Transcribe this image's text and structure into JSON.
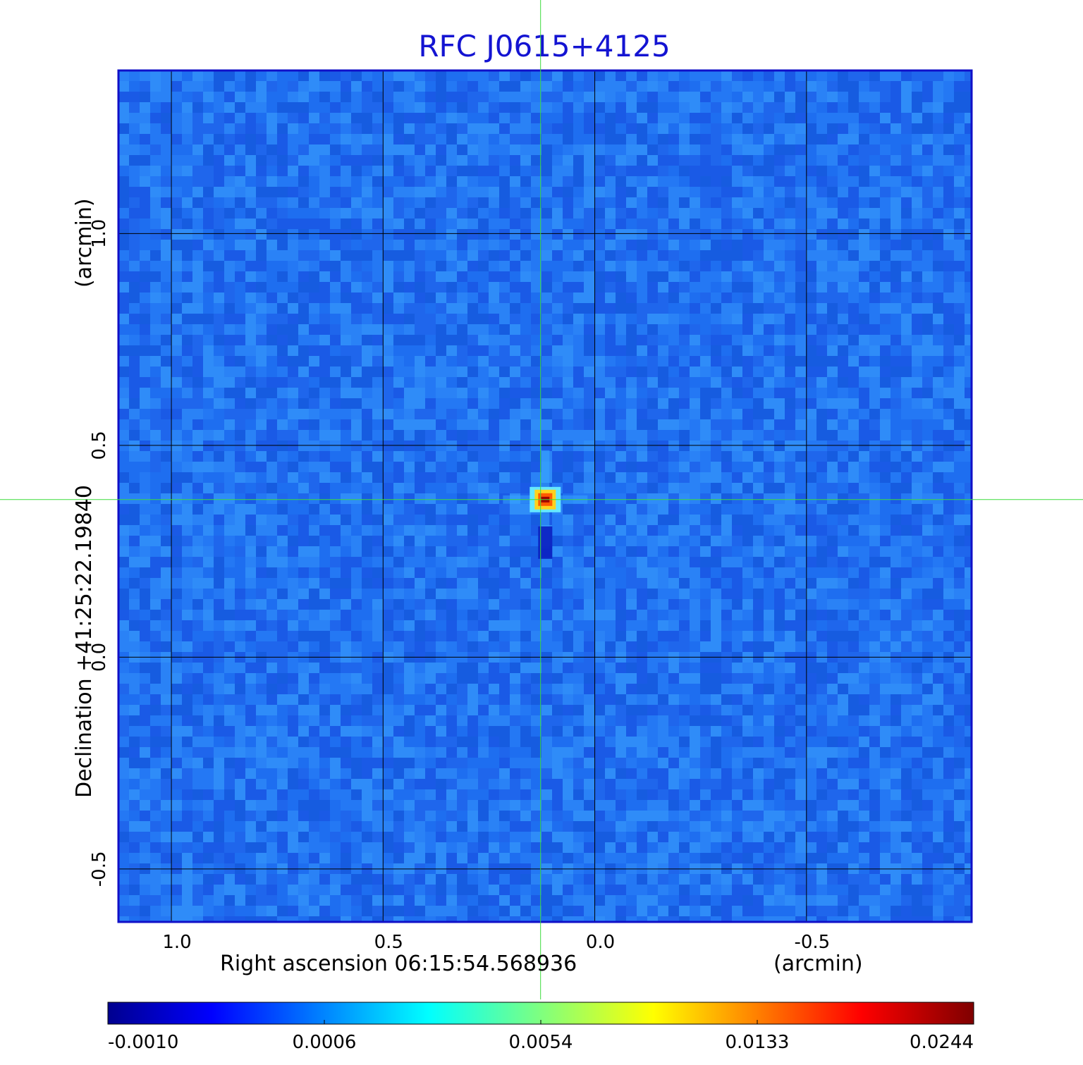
{
  "chart_data": {
    "type": "heatmap",
    "title": "RFC J0615+4125",
    "xlabel": "Right ascension  06:15:54.568936",
    "xunit": "(arcmin)",
    "ylabel": "Declination  +41:25:22.19840",
    "yunit": "(arcmin)",
    "xlim": [
      1.125,
      -0.89
    ],
    "ylim": [
      -0.625,
      1.385
    ],
    "x_ticks": [
      1.0,
      0.5,
      0.0,
      -0.5
    ],
    "x_tick_labels": [
      "1.0",
      "0.5",
      "0.0",
      "-0.5"
    ],
    "y_ticks": [
      -0.5,
      0.0,
      0.5,
      1.0
    ],
    "y_tick_labels": [
      "-0.5",
      "0.0",
      "0.5",
      "1.0"
    ],
    "grid": true,
    "crosshair": {
      "x": 0.128,
      "y": 0.372
    },
    "source_peak": {
      "x": 0.117,
      "y": 0.372,
      "value": 0.0244
    },
    "colormap": "jet",
    "colorbar": {
      "position": "bottom",
      "tick_values": [
        -0.001,
        0.0006,
        0.0054,
        0.0133,
        0.0244
      ],
      "tick_labels": [
        "-0.0010",
        "0.0006",
        "0.0054",
        "0.0133",
        "0.0244"
      ]
    },
    "colors": {
      "title": "#1414d2",
      "frame": "#1010c8",
      "grid": "#000000",
      "crosshair": "#3ddc3d",
      "background_map": "#1e6ef0"
    }
  }
}
